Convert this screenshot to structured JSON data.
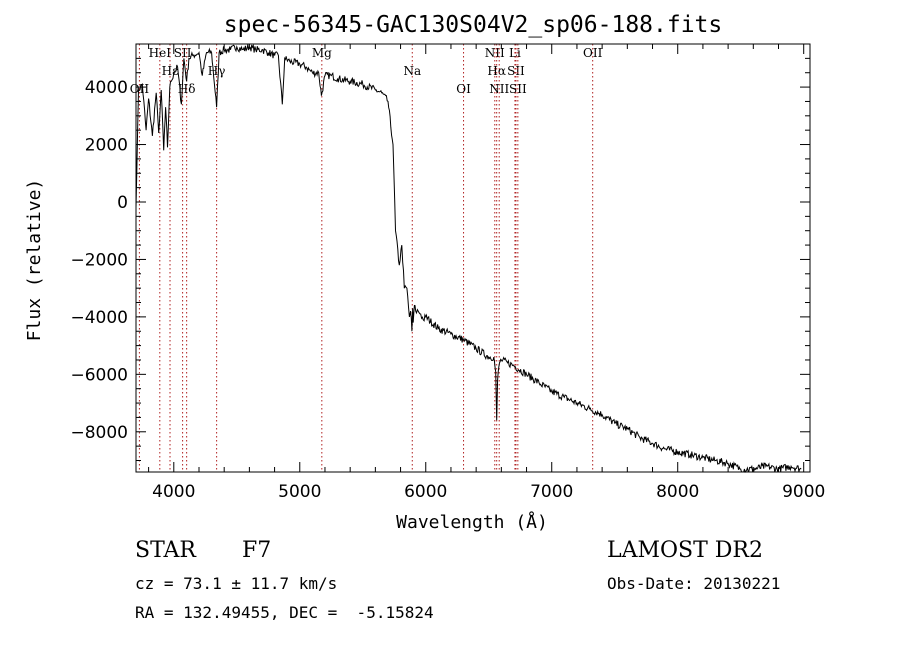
{
  "chart_data": {
    "type": "line",
    "title": "spec-56345-GAC130S04V2_sp06-188.fits",
    "xlabel": "Wavelength (Å)",
    "ylabel": "Flux (relative)",
    "xlim": [
      3700,
      9050
    ],
    "ylim": [
      -9400,
      5500
    ],
    "xticks": [
      4000,
      5000,
      6000,
      7000,
      8000,
      9000
    ],
    "yticks": [
      -8000,
      -6000,
      -4000,
      -2000,
      0,
      2000,
      4000
    ],
    "grid": false,
    "series": [
      {
        "x": [
          3700,
          3720,
          3750,
          3780,
          3800,
          3830,
          3860,
          3880,
          3900,
          3920,
          3935,
          3950,
          3968,
          3980,
          4000,
          4030,
          4060,
          4080,
          4102,
          4120,
          4150,
          4200,
          4226,
          4260,
          4300,
          4340,
          4360,
          4400,
          4450,
          4500,
          4550,
          4600,
          4650,
          4700,
          4750,
          4800,
          4830,
          4861,
          4880,
          4920,
          5000,
          5050,
          5100,
          5150,
          5172,
          5200,
          5250,
          5300,
          5400,
          5500,
          5600,
          5650,
          5700,
          5740,
          5760,
          5790,
          5810,
          5830,
          5850,
          5870,
          5880,
          5890,
          5896,
          5900,
          5910,
          5920,
          5940,
          5960,
          5980,
          6000,
          6100,
          6200,
          6300,
          6400,
          6500,
          6540,
          6555,
          6563,
          6570,
          6585,
          6600,
          6650,
          6700,
          6800,
          6900,
          7000,
          7100,
          7200,
          7300,
          7400,
          7500,
          7600,
          7700,
          7800,
          7900,
          8000,
          8100,
          8200,
          8300,
          8400,
          8500,
          8600,
          8700,
          8800,
          8900,
          8980
        ],
        "y": [
          -200,
          3900,
          4100,
          2500,
          3600,
          2300,
          3800,
          2400,
          3900,
          1800,
          3300,
          1900,
          4000,
          4200,
          4500,
          4700,
          3400,
          5000,
          4200,
          5000,
          5100,
          5200,
          4400,
          5200,
          5200,
          3300,
          5200,
          5300,
          5300,
          5400,
          5300,
          5400,
          5300,
          5300,
          5200,
          5100,
          5100,
          3400,
          5000,
          4900,
          4800,
          4700,
          4500,
          4500,
          3700,
          4400,
          4400,
          4300,
          4200,
          4100,
          3900,
          3800,
          3500,
          2000,
          -1000,
          -2200,
          -1500,
          -3000,
          -3000,
          -4000,
          -3800,
          -4500,
          -3700,
          -4200,
          -3600,
          -3800,
          -3800,
          -3900,
          -4100,
          -4000,
          -4400,
          -4600,
          -4800,
          -5100,
          -5400,
          -5400,
          -5900,
          -7600,
          -6200,
          -5600,
          -5500,
          -5600,
          -5700,
          -6000,
          -6300,
          -6600,
          -6800,
          -7000,
          -7200,
          -7400,
          -7700,
          -7900,
          -8200,
          -8400,
          -8600,
          -8700,
          -8800,
          -8900,
          -9000,
          -9100,
          -9300,
          -9300,
          -9200,
          -9300,
          -9200,
          -9300
        ]
      }
    ],
    "lines": [
      {
        "label": "HeI",
        "x": 3889
      },
      {
        "label": "Hε",
        "x": 3970
      },
      {
        "label": "Hδ",
        "x": 4102
      },
      {
        "label": "SII",
        "x": 4070
      },
      {
        "label": "Hγ",
        "x": 4340
      },
      {
        "label": "OII",
        "x": 3727
      },
      {
        "label": "Mg",
        "x": 5175
      },
      {
        "label": "Na",
        "x": 5893
      },
      {
        "label": "OI",
        "x": 6300
      },
      {
        "label": "NII",
        "x": 6548
      },
      {
        "label": "Hα",
        "x": 6563
      },
      {
        "label": "NII",
        "x": 6583
      },
      {
        "label": "Li",
        "x": 6708
      },
      {
        "label": "SII",
        "x": 6716
      },
      {
        "label": "SII",
        "x": 6731
      },
      {
        "label": "OII",
        "x": 7325
      }
    ]
  },
  "info": {
    "class": "STAR",
    "subclass": "F7",
    "release": "LAMOST DR2",
    "cz": "cz = 73.1 ± 11.7 km/s",
    "obsdate": "Obs-Date: 20130221",
    "coords": "RA = 132.49455, DEC =  -5.15824"
  }
}
